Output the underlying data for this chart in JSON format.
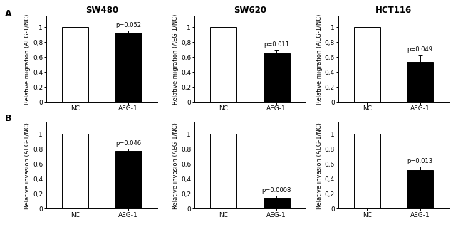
{
  "row_labels": [
    "A",
    "B"
  ],
  "col_titles": [
    "SW480",
    "SW620",
    "HCT116"
  ],
  "row_A_ylabel": "Relative migration (AEG-1/NC)",
  "row_B_ylabel": "Relative invasion (AEG-1/NC)",
  "xtick_labels": [
    "NC",
    "AEG-1"
  ],
  "yticks": [
    0,
    0.2,
    0.4,
    0.6,
    0.8,
    1.0
  ],
  "ytick_labels": [
    "0",
    "0,2",
    "0,4",
    "0,6",
    "0,8",
    "1"
  ],
  "bars": {
    "A_SW480": {
      "NC": 1.0,
      "AEG1": 0.93,
      "AEG1_err": 0.025,
      "pval": "p=0.052"
    },
    "A_SW620": {
      "NC": 1.0,
      "AEG1": 0.65,
      "AEG1_err": 0.05,
      "pval": "p=0.011"
    },
    "A_HCT116": {
      "NC": 1.0,
      "AEG1": 0.54,
      "AEG1_err": 0.09,
      "pval": "p=0.049"
    },
    "B_SW480": {
      "NC": 1.0,
      "AEG1": 0.77,
      "AEG1_err": 0.03,
      "pval": "p=0.046"
    },
    "B_SW620": {
      "NC": 1.0,
      "AEG1": 0.15,
      "AEG1_err": 0.025,
      "pval": "p=0.0008"
    },
    "B_HCT116": {
      "NC": 1.0,
      "AEG1": 0.52,
      "AEG1_err": 0.04,
      "pval": "p=0.013"
    }
  },
  "bar_colors": {
    "NC": "white",
    "AEG1": "black"
  },
  "bar_edgecolor": "black",
  "figsize": [
    6.5,
    3.19
  ],
  "dpi": 100,
  "ylim": [
    0,
    1.15
  ],
  "title_fontsize": 8.5,
  "label_fontsize": 6.0,
  "tick_fontsize": 6.5,
  "pval_fontsize": 6.0,
  "rowlabel_fontsize": 9
}
